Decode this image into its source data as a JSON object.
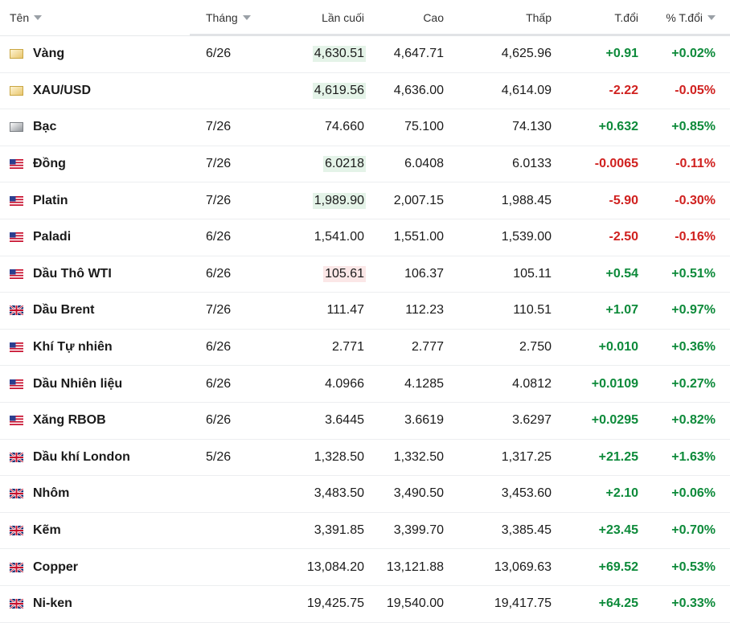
{
  "headers": {
    "name": "Tên",
    "month": "Tháng",
    "last": "Lần cuối",
    "high": "Cao",
    "low": "Thấp",
    "change": "T.đổi",
    "change_pct": "% T.đổi"
  },
  "colors": {
    "positive": "#0d8a3a",
    "negative": "#d0211f",
    "highlight_up": "#e4f3e8",
    "highlight_down": "#fbe7e7"
  },
  "rows": [
    {
      "name": "Vàng",
      "icon": "gold-square-icon",
      "month": "6/26",
      "last": "4,630.51",
      "high": "4,647.71",
      "low": "4,625.96",
      "change": "+0.91",
      "change_pct": "+0.02%"
    },
    {
      "name": "XAU/USD",
      "icon": "gold-square-icon",
      "month": "",
      "last": "4,619.56",
      "high": "4,636.00",
      "low": "4,614.09",
      "change": "-2.22",
      "change_pct": "-0.05%"
    },
    {
      "name": "Bạc",
      "icon": "silver-square-icon",
      "month": "7/26",
      "last": "74.660",
      "high": "75.100",
      "low": "74.130",
      "change": "+0.632",
      "change_pct": "+0.85%"
    },
    {
      "name": "Đồng",
      "icon": "us-flag-icon",
      "month": "7/26",
      "last": "6.0218",
      "high": "6.0408",
      "low": "6.0133",
      "change": "-0.0065",
      "change_pct": "-0.11%"
    },
    {
      "name": "Platin",
      "icon": "us-flag-icon",
      "month": "7/26",
      "last": "1,989.90",
      "high": "2,007.15",
      "low": "1,988.45",
      "change": "-5.90",
      "change_pct": "-0.30%"
    },
    {
      "name": "Paladi",
      "icon": "us-flag-icon",
      "month": "6/26",
      "last": "1,541.00",
      "high": "1,551.00",
      "low": "1,539.00",
      "change": "-2.50",
      "change_pct": "-0.16%"
    },
    {
      "name": "Dầu Thô WTI",
      "icon": "us-flag-icon",
      "month": "6/26",
      "last": "105.61",
      "high": "106.37",
      "low": "105.11",
      "change": "+0.54",
      "change_pct": "+0.51%"
    },
    {
      "name": "Dầu Brent",
      "icon": "uk-flag-icon",
      "month": "7/26",
      "last": "111.47",
      "high": "112.23",
      "low": "110.51",
      "change": "+1.07",
      "change_pct": "+0.97%"
    },
    {
      "name": "Khí Tự nhiên",
      "icon": "us-flag-icon",
      "month": "6/26",
      "last": "2.771",
      "high": "2.777",
      "low": "2.750",
      "change": "+0.010",
      "change_pct": "+0.36%"
    },
    {
      "name": "Dầu Nhiên liệu",
      "icon": "us-flag-icon",
      "month": "6/26",
      "last": "4.0966",
      "high": "4.1285",
      "low": "4.0812",
      "change": "+0.0109",
      "change_pct": "+0.27%"
    },
    {
      "name": "Xăng RBOB",
      "icon": "us-flag-icon",
      "month": "6/26",
      "last": "3.6445",
      "high": "3.6619",
      "low": "3.6297",
      "change": "+0.0295",
      "change_pct": "+0.82%"
    },
    {
      "name": "Dầu khí London",
      "icon": "uk-flag-icon",
      "month": "5/26",
      "last": "1,328.50",
      "high": "1,332.50",
      "low": "1,317.25",
      "change": "+21.25",
      "change_pct": "+1.63%"
    },
    {
      "name": "Nhôm",
      "icon": "uk-flag-icon",
      "month": "",
      "last": "3,483.50",
      "high": "3,490.50",
      "low": "3,453.60",
      "change": "+2.10",
      "change_pct": "+0.06%"
    },
    {
      "name": "Kẽm",
      "icon": "uk-flag-icon",
      "month": "",
      "last": "3,391.85",
      "high": "3,399.70",
      "low": "3,385.45",
      "change": "+23.45",
      "change_pct": "+0.70%"
    },
    {
      "name": "Copper",
      "icon": "uk-flag-icon",
      "month": "",
      "last": "13,084.20",
      "high": "13,121.88",
      "low": "13,069.63",
      "change": "+69.52",
      "change_pct": "+0.53%"
    },
    {
      "name": "Ni-ken",
      "icon": "uk-flag-icon",
      "month": "",
      "last": "19,425.75",
      "high": "19,540.00",
      "low": "19,417.75",
      "change": "+64.25",
      "change_pct": "+0.33%"
    }
  ]
}
